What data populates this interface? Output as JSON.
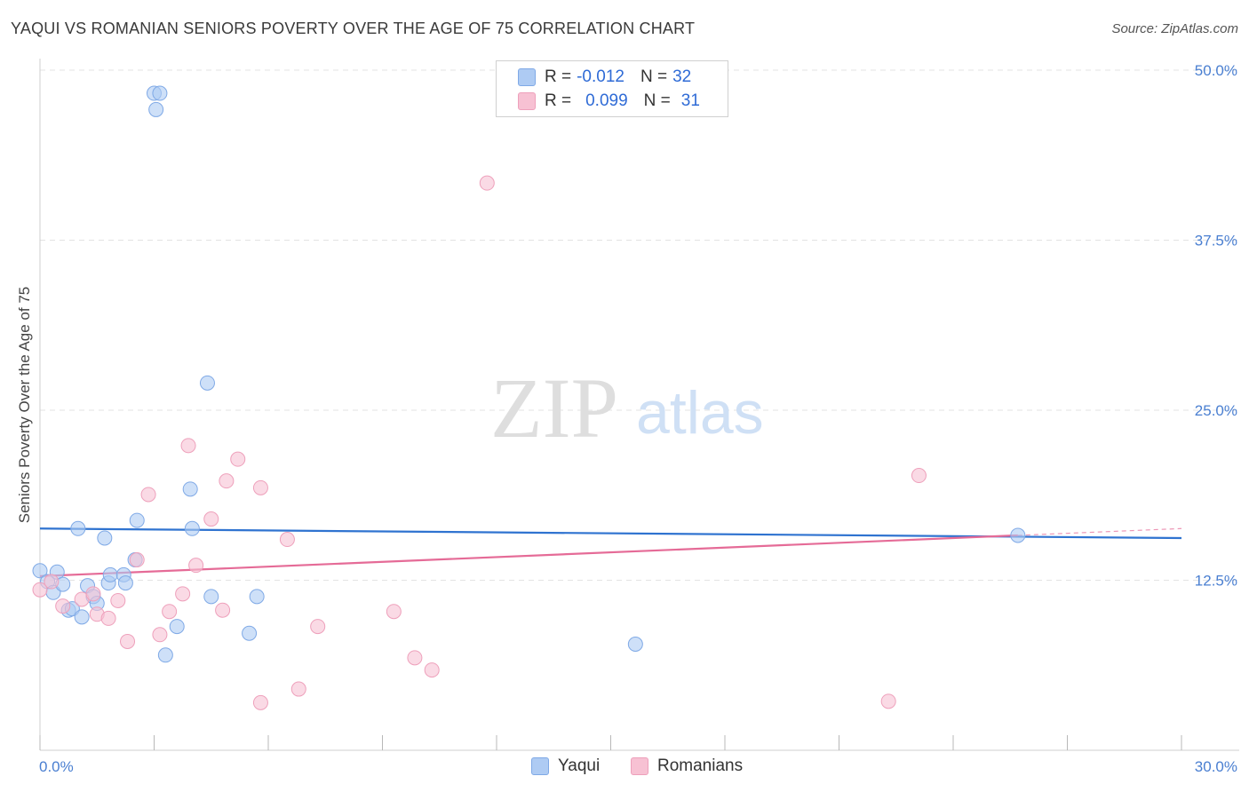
{
  "title": "YAQUI VS ROMANIAN SENIORS POVERTY OVER THE AGE OF 75 CORRELATION CHART",
  "source": "Source: ZipAtlas.com",
  "watermark": {
    "zip": "ZIP",
    "atlas": "atlas"
  },
  "legend": {
    "rows": [
      {
        "r_label": "R =",
        "r_value": "-0.012",
        "n_label": "N =",
        "n_value": "32"
      },
      {
        "r_label": "R =",
        "r_value": "0.099",
        "n_label": "N =",
        "n_value": "31"
      }
    ]
  },
  "bottom_legend": [
    {
      "label": "Yaqui"
    },
    {
      "label": "Romanians"
    }
  ],
  "colors": {
    "yaqui_fill": "#aecbf3",
    "yaqui_stroke": "#7fa9e6",
    "yaqui_line": "#2f73d0",
    "romanian_fill": "#f7c1d3",
    "romanian_stroke": "#eea0bb",
    "romanian_line": "#e56b97",
    "grid": "#e3e3e3",
    "axis_text": "#4a7fd1"
  },
  "chart_data": {
    "type": "scatter",
    "title": "YAQUI VS ROMANIAN SENIORS POVERTY OVER THE AGE OF 75 CORRELATION CHART",
    "xlabel": "",
    "ylabel": "Seniors Poverty Over the Age of 75",
    "xlim": [
      0,
      30
    ],
    "ylim": [
      0,
      52
    ],
    "x_tick_labels": [
      {
        "value": 0,
        "label": "0.0%"
      },
      {
        "value": 30,
        "label": "30.0%"
      }
    ],
    "y_tick_labels": [
      {
        "value": 12.5,
        "label": "12.5%"
      },
      {
        "value": 25,
        "label": "25.0%"
      },
      {
        "value": 37.5,
        "label": "37.5%"
      },
      {
        "value": 50,
        "label": "50.0%"
      }
    ],
    "series": [
      {
        "name": "Yaqui",
        "points": [
          [
            0.0,
            13.2
          ],
          [
            0.2,
            12.4
          ],
          [
            0.35,
            11.6
          ],
          [
            0.45,
            13.1
          ],
          [
            0.6,
            12.2
          ],
          [
            0.75,
            10.3
          ],
          [
            0.85,
            10.4
          ],
          [
            1.0,
            16.3
          ],
          [
            1.1,
            9.8
          ],
          [
            1.25,
            12.1
          ],
          [
            1.4,
            11.3
          ],
          [
            1.5,
            10.8
          ],
          [
            1.7,
            15.6
          ],
          [
            1.8,
            12.3
          ],
          [
            1.85,
            12.9
          ],
          [
            2.2,
            12.9
          ],
          [
            2.25,
            12.3
          ],
          [
            2.5,
            14.0
          ],
          [
            2.55,
            16.9
          ],
          [
            3.0,
            48.3
          ],
          [
            3.05,
            47.1
          ],
          [
            3.15,
            48.3
          ],
          [
            3.3,
            7.0
          ],
          [
            3.6,
            9.1
          ],
          [
            3.95,
            19.2
          ],
          [
            4.0,
            16.3
          ],
          [
            4.4,
            27.0
          ],
          [
            4.5,
            11.3
          ],
          [
            5.5,
            8.6
          ],
          [
            5.7,
            11.3
          ],
          [
            15.65,
            7.8
          ],
          [
            25.7,
            15.8
          ]
        ],
        "trend": {
          "x": [
            0,
            30
          ],
          "y": [
            16.3,
            15.6
          ]
        }
      },
      {
        "name": "Romanians",
        "points": [
          [
            0.0,
            11.8
          ],
          [
            0.3,
            12.4
          ],
          [
            0.6,
            10.6
          ],
          [
            1.1,
            11.1
          ],
          [
            1.4,
            11.5
          ],
          [
            1.5,
            10.0
          ],
          [
            1.8,
            9.7
          ],
          [
            2.05,
            11.0
          ],
          [
            2.3,
            8.0
          ],
          [
            2.85,
            18.8
          ],
          [
            2.55,
            14.0
          ],
          [
            3.15,
            8.5
          ],
          [
            3.4,
            10.2
          ],
          [
            3.75,
            11.5
          ],
          [
            3.9,
            22.4
          ],
          [
            4.1,
            13.6
          ],
          [
            4.5,
            17.0
          ],
          [
            4.8,
            10.3
          ],
          [
            4.9,
            19.8
          ],
          [
            5.2,
            21.4
          ],
          [
            5.8,
            3.5
          ],
          [
            5.8,
            19.3
          ],
          [
            6.5,
            15.5
          ],
          [
            6.8,
            4.5
          ],
          [
            7.3,
            9.1
          ],
          [
            9.3,
            10.2
          ],
          [
            9.85,
            6.8
          ],
          [
            10.3,
            5.9
          ],
          [
            11.75,
            41.7
          ],
          [
            22.3,
            3.6
          ],
          [
            23.1,
            20.2
          ]
        ],
        "trend": {
          "x": [
            0,
            25.7
          ],
          "y": [
            12.8,
            15.8
          ]
        },
        "trend_extension": {
          "x": [
            25.7,
            30
          ],
          "y": [
            15.8,
            16.3
          ]
        }
      }
    ]
  }
}
